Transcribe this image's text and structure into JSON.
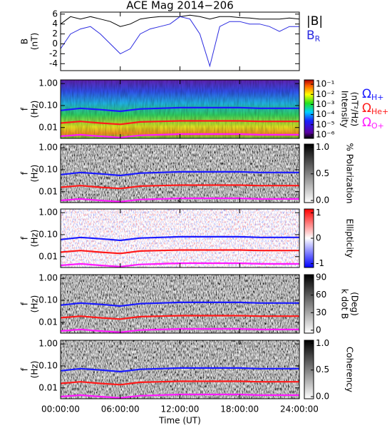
{
  "chart_data": [
    {
      "type": "line",
      "title": "ACE Mag 2014−206",
      "ylabel": [
        "B",
        "(nT)"
      ],
      "xlim": [
        0,
        24
      ],
      "xticks": [
        0,
        6,
        12,
        18,
        24
      ],
      "ylim": [
        -5.4,
        6.4
      ],
      "yticks": [
        -4,
        -2,
        0,
        2,
        4,
        6
      ],
      "x": [
        0,
        1,
        2,
        3,
        4,
        5,
        6,
        7,
        8,
        9,
        10,
        11,
        12,
        13,
        14,
        15,
        16,
        17,
        18,
        19,
        20,
        21,
        22,
        23,
        24
      ],
      "series": [
        {
          "name": "|B|",
          "color": "#000000",
          "values": [
            4,
            5.5,
            5,
            5.5,
            5,
            4.5,
            3.5,
            4,
            5,
            5.3,
            5.5,
            5.5,
            5.5,
            5.8,
            5.5,
            5,
            5.5,
            5.5,
            5.3,
            5.2,
            5,
            5,
            5,
            5.2,
            5
          ]
        },
        {
          "name": "B",
          "subscript": "R",
          "color": "#2a2ae0",
          "values": [
            -1,
            2,
            3,
            3.5,
            2,
            0,
            -2,
            -1,
            2,
            3,
            3.5,
            4,
            5.5,
            5,
            2,
            -4.5,
            3.5,
            4.5,
            4.5,
            4,
            4,
            3.5,
            2.5,
            3.5,
            3.5
          ]
        }
      ]
    },
    {
      "type": "spectrogram",
      "ylabel": [
        "f",
        "(Hz)"
      ],
      "log": true,
      "xlim": [
        0,
        24
      ],
      "xticks": [
        0,
        6,
        12,
        18,
        24
      ],
      "ylim": [
        0.0032,
        1.47
      ],
      "yticks": [
        {
          "value": 0.01,
          "label": "0.01"
        },
        {
          "value": 0.1,
          "label": "0.10"
        },
        {
          "value": 1,
          "label": "1.00"
        }
      ],
      "colorbar": {
        "label": [
          "Intensity",
          "(nT²/Hz)"
        ],
        "colormap": "rainbow",
        "log": true,
        "lim": [
          4.4e-07,
          0.27
        ],
        "ticks": [
          {
            "value": 0.1,
            "label": "10⁻¹"
          },
          {
            "value": 0.01,
            "label": "10⁻²"
          },
          {
            "value": 0.001,
            "label": "10⁻³"
          },
          {
            "value": 0.0001,
            "label": "10⁻⁴"
          },
          {
            "value": 1e-05,
            "label": "10⁻⁵"
          },
          {
            "value": 1e-06,
            "label": "10⁻⁶"
          }
        ]
      },
      "x": [
        0,
        2,
        4,
        6,
        8,
        10,
        12,
        14,
        16,
        18,
        20,
        22,
        24
      ],
      "series": [
        {
          "name": "Ω",
          "subscript": "H+",
          "color": "#1a1aff",
          "values": [
            0.06,
            0.075,
            0.065,
            0.055,
            0.07,
            0.075,
            0.08,
            0.08,
            0.08,
            0.08,
            0.075,
            0.075,
            0.075
          ]
        },
        {
          "name": "Ω",
          "subscript": "He+",
          "color": "#ff1a1a",
          "values": [
            0.016,
            0.019,
            0.016,
            0.014,
            0.018,
            0.019,
            0.02,
            0.02,
            0.02,
            0.02,
            0.019,
            0.019,
            0.019
          ]
        },
        {
          "name": "Ω",
          "subscript": "O+",
          "color": "#ff1aff",
          "values": [
            0.004,
            0.0047,
            0.004,
            0.0035,
            0.0044,
            0.0047,
            0.005,
            0.005,
            0.005,
            0.005,
            0.0047,
            0.0047,
            0.0047
          ]
        }
      ]
    },
    {
      "type": "spectrogram",
      "ylabel": [
        "f",
        "(Hz)"
      ],
      "log": true,
      "xlim": [
        0,
        24
      ],
      "xticks": [
        0,
        6,
        12,
        18,
        24
      ],
      "ylim": [
        0.0032,
        1.47
      ],
      "yticks": [
        {
          "value": 0.01,
          "label": "0.01"
        },
        {
          "value": 0.1,
          "label": "0.10"
        },
        {
          "value": 1,
          "label": "1.00"
        }
      ],
      "colorbar": {
        "label": [
          "% Polarization"
        ],
        "colormap": "gray",
        "lim": [
          -0.04,
          1.06
        ],
        "ticks": [
          {
            "value": 0,
            "label": "0.0"
          },
          {
            "value": 0.5,
            "label": "0.5"
          },
          {
            "value": 1,
            "label": "1.0"
          }
        ]
      },
      "x": [
        0,
        2,
        4,
        6,
        8,
        10,
        12,
        14,
        16,
        18,
        20,
        22,
        24
      ],
      "series": [
        {
          "color": "#1a1aff",
          "values": [
            0.06,
            0.075,
            0.065,
            0.055,
            0.07,
            0.075,
            0.08,
            0.08,
            0.08,
            0.08,
            0.075,
            0.075,
            0.075
          ]
        },
        {
          "color": "#ff1a1a",
          "values": [
            0.016,
            0.019,
            0.016,
            0.014,
            0.018,
            0.019,
            0.02,
            0.02,
            0.02,
            0.02,
            0.019,
            0.019,
            0.019
          ]
        },
        {
          "color": "#ff1aff",
          "values": [
            0.004,
            0.0047,
            0.004,
            0.0035,
            0.0044,
            0.0047,
            0.005,
            0.005,
            0.005,
            0.005,
            0.0047,
            0.0047,
            0.0047
          ]
        }
      ]
    },
    {
      "type": "spectrogram",
      "ylabel": [
        "f",
        "(Hz)"
      ],
      "log": true,
      "xlim": [
        0,
        24
      ],
      "xticks": [
        0,
        6,
        12,
        18,
        24
      ],
      "ylim": [
        0.0032,
        1.47
      ],
      "yticks": [
        {
          "value": 0.01,
          "label": "0.01"
        },
        {
          "value": 0.1,
          "label": "0.10"
        },
        {
          "value": 1,
          "label": "1.00"
        }
      ],
      "colorbar": {
        "label": [
          "Ellipticity"
        ],
        "colormap": "bwr",
        "lim": [
          -1.15,
          1.15
        ],
        "ticks": [
          -1,
          0,
          1
        ]
      },
      "x": [
        0,
        2,
        4,
        6,
        8,
        10,
        12,
        14,
        16,
        18,
        20,
        22,
        24
      ],
      "series": [
        {
          "color": "#1a1aff",
          "values": [
            0.06,
            0.075,
            0.065,
            0.055,
            0.07,
            0.075,
            0.08,
            0.08,
            0.08,
            0.08,
            0.075,
            0.075,
            0.075
          ]
        },
        {
          "color": "#ff1a1a",
          "values": [
            0.016,
            0.019,
            0.016,
            0.014,
            0.018,
            0.019,
            0.02,
            0.02,
            0.02,
            0.02,
            0.019,
            0.019,
            0.019
          ]
        },
        {
          "color": "#ff1aff",
          "values": [
            0.004,
            0.0047,
            0.004,
            0.0035,
            0.0044,
            0.0047,
            0.005,
            0.005,
            0.005,
            0.005,
            0.0047,
            0.0047,
            0.0047
          ]
        }
      ]
    },
    {
      "type": "spectrogram",
      "ylabel": [
        "f",
        "(Hz)"
      ],
      "log": true,
      "xlim": [
        0,
        24
      ],
      "xticks": [
        0,
        6,
        12,
        18,
        24
      ],
      "ylim": [
        0.0032,
        1.47
      ],
      "yticks": [
        {
          "value": 0.01,
          "label": "0.01"
        },
        {
          "value": 0.1,
          "label": "0.10"
        },
        {
          "value": 1,
          "label": "1.00"
        }
      ],
      "colorbar": {
        "label": [
          "k dot B",
          "(Deg)"
        ],
        "colormap": "gray",
        "lim": [
          -5,
          95
        ],
        "ticks": [
          0,
          30,
          60,
          90
        ]
      },
      "x": [
        0,
        2,
        4,
        6,
        8,
        10,
        12,
        14,
        16,
        18,
        20,
        22,
        24
      ],
      "series": [
        {
          "color": "#1a1aff",
          "values": [
            0.06,
            0.075,
            0.065,
            0.055,
            0.07,
            0.075,
            0.08,
            0.08,
            0.08,
            0.08,
            0.075,
            0.075,
            0.075
          ]
        },
        {
          "color": "#ff1a1a",
          "values": [
            0.016,
            0.019,
            0.016,
            0.014,
            0.018,
            0.019,
            0.02,
            0.02,
            0.02,
            0.02,
            0.019,
            0.019,
            0.019
          ]
        },
        {
          "color": "#ff1aff",
          "values": [
            0.004,
            0.0047,
            0.004,
            0.0035,
            0.0044,
            0.0047,
            0.005,
            0.005,
            0.005,
            0.005,
            0.0047,
            0.0047,
            0.0047
          ]
        }
      ]
    },
    {
      "type": "spectrogram",
      "ylabel": [
        "f",
        "(Hz)"
      ],
      "log": true,
      "xlabel": "Time (UT)",
      "xlim": [
        0,
        24
      ],
      "xticks": [
        {
          "value": 0,
          "label": "00:00:00"
        },
        {
          "value": 6,
          "label": "06:00:00"
        },
        {
          "value": 12,
          "label": "12:00:00"
        },
        {
          "value": 18,
          "label": "18:00:00"
        },
        {
          "value": 24,
          "label": "24:00:00"
        }
      ],
      "ylim": [
        0.0032,
        1.47
      ],
      "yticks": [
        {
          "value": 0.01,
          "label": "0.01"
        },
        {
          "value": 0.1,
          "label": "0.10"
        },
        {
          "value": 1,
          "label": "1.00"
        }
      ],
      "colorbar": {
        "label": [
          "Coherency"
        ],
        "colormap": "gray",
        "lim": [
          -0.04,
          1.06
        ],
        "ticks": [
          {
            "value": 0,
            "label": "0.0"
          },
          {
            "value": 0.5,
            "label": "0.5"
          },
          {
            "value": 1,
            "label": "1.0"
          }
        ]
      },
      "x": [
        0,
        2,
        4,
        6,
        8,
        10,
        12,
        14,
        16,
        18,
        20,
        22,
        24
      ],
      "series": [
        {
          "color": "#1a1aff",
          "values": [
            0.06,
            0.075,
            0.065,
            0.055,
            0.07,
            0.075,
            0.08,
            0.08,
            0.08,
            0.08,
            0.075,
            0.075,
            0.075
          ]
        },
        {
          "color": "#ff1a1a",
          "values": [
            0.016,
            0.019,
            0.016,
            0.014,
            0.018,
            0.019,
            0.02,
            0.02,
            0.02,
            0.02,
            0.019,
            0.019,
            0.019
          ]
        },
        {
          "color": "#ff1aff",
          "values": [
            0.004,
            0.0047,
            0.004,
            0.0035,
            0.0044,
            0.0047,
            0.005,
            0.005,
            0.005,
            0.005,
            0.0047,
            0.0047,
            0.0047
          ]
        }
      ]
    }
  ]
}
